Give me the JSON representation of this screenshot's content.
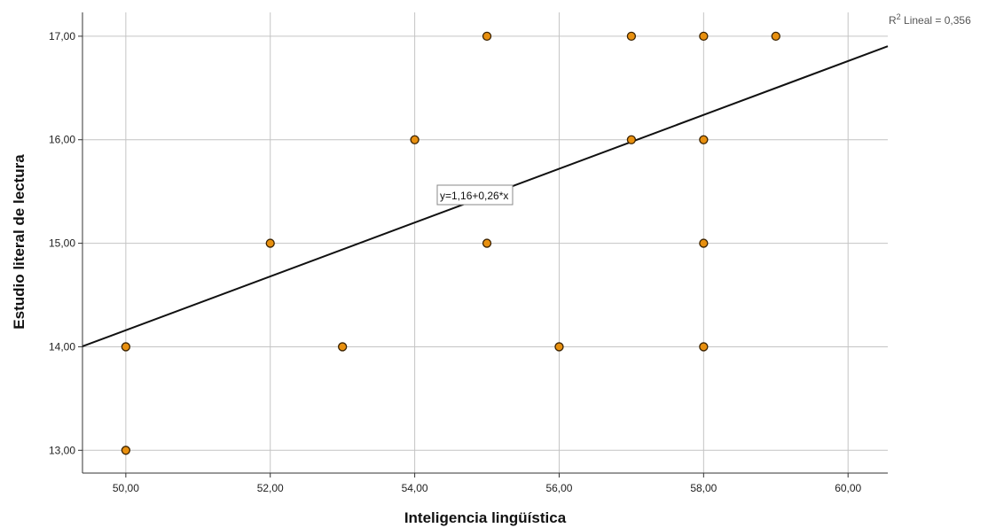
{
  "chart_data": {
    "type": "scatter",
    "title": "",
    "xlabel": "Inteligencia lingüística",
    "ylabel": "Estudio literal de lectura",
    "xlim": [
      49.4,
      60.55
    ],
    "ylim": [
      12.78,
      17.23
    ],
    "x_ticks": [
      50,
      52,
      54,
      56,
      58,
      60
    ],
    "y_ticks": [
      13,
      14,
      15,
      16,
      17
    ],
    "x_tick_labels": [
      "50,00",
      "52,00",
      "54,00",
      "56,00",
      "58,00",
      "60,00"
    ],
    "y_tick_labels": [
      "13,00",
      "14,00",
      "15,00",
      "16,00",
      "17,00"
    ],
    "grid": true,
    "points": [
      {
        "x": 50,
        "y": 14
      },
      {
        "x": 50,
        "y": 13
      },
      {
        "x": 52,
        "y": 15
      },
      {
        "x": 53,
        "y": 14
      },
      {
        "x": 54,
        "y": 16
      },
      {
        "x": 55,
        "y": 17
      },
      {
        "x": 55,
        "y": 15
      },
      {
        "x": 56,
        "y": 14
      },
      {
        "x": 57,
        "y": 17
      },
      {
        "x": 57,
        "y": 16
      },
      {
        "x": 58,
        "y": 17
      },
      {
        "x": 58,
        "y": 16
      },
      {
        "x": 58,
        "y": 15
      },
      {
        "x": 58,
        "y": 14
      },
      {
        "x": 59,
        "y": 17
      }
    ],
    "fit_line": {
      "intercept": 1.16,
      "slope": 0.26
    },
    "equation_label": "y=1,16+0,26*x",
    "r2_label": {
      "prefix": "R",
      "sup": "2",
      "text": " Lineal = 0,356"
    },
    "colors": {
      "point_fill": "#E8900F",
      "point_stroke": "#3a2200",
      "line": "#111111",
      "grid": "#c4c4c4"
    }
  }
}
